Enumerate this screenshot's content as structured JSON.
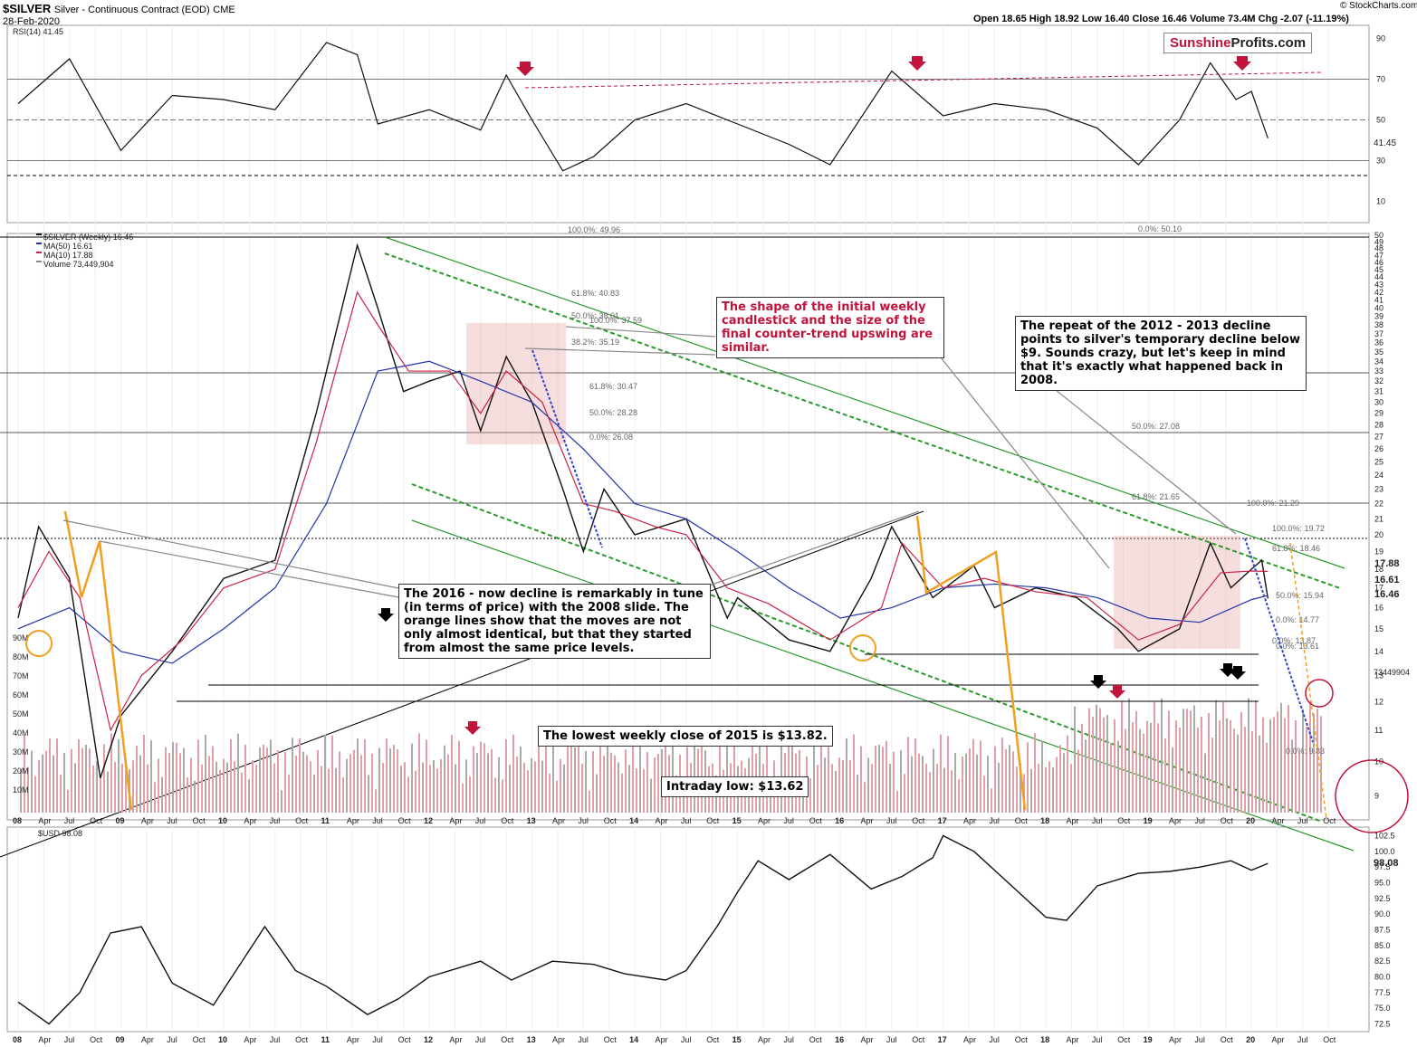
{
  "header": {
    "symbol": "$SILVER",
    "name": "Silver - Continuous Contract (EOD)",
    "exchange": "CME",
    "date": "28-Feb-2020",
    "ohlc": "Open 18.65  High 18.92  Low 16.40  Close 16.46  Volume 73.4M  Chg -2.07 (-11.19%)",
    "copyright": "© StockCharts.com"
  },
  "logo": {
    "part1": "Sunshine",
    "part2": "Profits.com"
  },
  "annotations": {
    "shape_note": "The shape of the initial weekly candlestick and the size of the final counter-trend upswing are similar.",
    "repeat_note": "The repeat of the 2012 - 2013 decline points to silver's temporary decline below $9. Sounds crazy, but let's keep in mind that it's exactly what happened back in 2008.",
    "decline_note": "The 2016 - now decline is remarkably in tune (in terms of price) with the 2008 slide. The orange lines show that the moves are not only almost identical, but that they started from almost the same price levels.",
    "lowest_close_note": "The lowest weekly close of 2015 is $13.82.",
    "intraday_note": "Intraday low: $13.62"
  },
  "chart_data": [
    {
      "type": "line",
      "panel": "rsi",
      "title": "RSI(14) 41.45",
      "y_ticks": [
        "90",
        "70",
        "50",
        "30",
        "10"
      ],
      "ylim": [
        0,
        100
      ],
      "last_value_label": "41.45",
      "x": [
        2008.0,
        2008.5,
        2009.0,
        2009.5,
        2010.0,
        2010.5,
        2011.0,
        2011.3,
        2011.5,
        2012.0,
        2012.5,
        2012.75,
        2013.0,
        2013.3,
        2013.6,
        2014.0,
        2014.5,
        2015.0,
        2015.5,
        2015.9,
        2016.5,
        2017.0,
        2017.5,
        2018.0,
        2018.5,
        2018.9,
        2019.3,
        2019.6,
        2019.85,
        2020.0,
        2020.16
      ],
      "values": [
        58,
        80,
        35,
        62,
        60,
        55,
        88,
        82,
        48,
        55,
        45,
        72,
        50,
        25,
        32,
        50,
        58,
        48,
        38,
        28,
        74,
        52,
        58,
        55,
        46,
        28,
        50,
        78,
        60,
        64,
        41
      ]
    },
    {
      "type": "line",
      "panel": "price",
      "title": "$SILVER (Weekly) 16.46",
      "legend": [
        "$SILVER (Weekly) 16.46",
        "MA(50) 16.61",
        "MA(10) 17.88",
        "Volume 73,449,904"
      ],
      "y_ticks": [
        "50",
        "49",
        "48",
        "47",
        "46",
        "45",
        "44",
        "43",
        "42",
        "41",
        "40",
        "39",
        "38",
        "37",
        "36",
        "35",
        "34",
        "33",
        "32",
        "31",
        "30",
        "29",
        "28",
        "27",
        "26",
        "25",
        "24",
        "23",
        "22",
        "21",
        "20",
        "19",
        "18",
        "17",
        "16",
        "15",
        "14",
        "13",
        "12",
        "11",
        "10",
        "9"
      ],
      "x_ticks": [
        "08",
        "Apr",
        "Jul",
        "Oct",
        "09",
        "Apr",
        "Jul",
        "Oct",
        "10",
        "Apr",
        "Jul",
        "Oct",
        "11",
        "Apr",
        "Jul",
        "Oct",
        "12",
        "Apr",
        "Jul",
        "Oct",
        "13",
        "Apr",
        "Jul",
        "Oct",
        "14",
        "Apr",
        "Jul",
        "Oct",
        "15",
        "Apr",
        "Jul",
        "Oct",
        "16",
        "Apr",
        "Jul",
        "Oct",
        "17",
        "Apr",
        "Jul",
        "Oct",
        "18",
        "Apr",
        "Jul",
        "Oct",
        "19",
        "Apr",
        "Jul",
        "Oct",
        "20",
        "Apr",
        "Jul",
        "Oct"
      ],
      "series": [
        {
          "name": "$SILVER (Weekly) 16.46",
          "x": [
            2008.0,
            2008.2,
            2008.5,
            2008.8,
            2009.0,
            2009.5,
            2010.0,
            2010.5,
            2010.9,
            2011.3,
            2011.5,
            2011.75,
            2012.0,
            2012.3,
            2012.5,
            2012.75,
            2013.0,
            2013.3,
            2013.5,
            2013.7,
            2014.0,
            2014.5,
            2014.9,
            2015.0,
            2015.5,
            2015.9,
            2016.3,
            2016.5,
            2016.9,
            2017.3,
            2017.5,
            2017.9,
            2018.3,
            2018.7,
            2018.9,
            2019.3,
            2019.6,
            2019.8,
            2020.0,
            2020.1,
            2020.16
          ],
          "values": [
            15.5,
            20.5,
            17.5,
            9.5,
            11.5,
            14.0,
            17.5,
            18.5,
            29.0,
            48.5,
            40.0,
            31.0,
            32.0,
            33.0,
            27.5,
            34.5,
            30.0,
            23.0,
            19.0,
            23.0,
            20.0,
            21.0,
            15.5,
            16.5,
            14.5,
            14.0,
            17.5,
            20.5,
            16.5,
            18.2,
            16.0,
            17.0,
            16.5,
            15.0,
            14.0,
            15.0,
            19.5,
            17.0,
            18.0,
            18.5,
            16.46
          ]
        },
        {
          "name": "MA(50) 16.61",
          "x": [
            2008.0,
            2008.5,
            2009.0,
            2009.5,
            2010.0,
            2010.5,
            2011.0,
            2011.5,
            2012.0,
            2012.5,
            2013.0,
            2013.5,
            2014.0,
            2014.5,
            2015.0,
            2015.5,
            2016.0,
            2016.5,
            2017.0,
            2017.5,
            2018.0,
            2018.5,
            2019.0,
            2019.5,
            2020.0,
            2020.16
          ],
          "values": [
            15.0,
            16.0,
            14.0,
            13.5,
            15.0,
            17.0,
            22.0,
            33.0,
            34.0,
            32.0,
            30.0,
            26.0,
            22.0,
            21.0,
            19.0,
            17.0,
            15.5,
            16.0,
            17.0,
            17.2,
            17.0,
            16.5,
            15.5,
            15.3,
            16.4,
            16.61
          ]
        },
        {
          "name": "MA(10) 17.88",
          "x": [
            2008.0,
            2008.3,
            2008.6,
            2008.9,
            2009.2,
            2009.6,
            2010.0,
            2010.5,
            2010.9,
            2011.3,
            2011.5,
            2011.8,
            2012.2,
            2012.5,
            2012.75,
            2013.1,
            2013.5,
            2013.8,
            2014.2,
            2014.5,
            2014.9,
            2015.3,
            2015.9,
            2016.4,
            2016.6,
            2017.0,
            2017.4,
            2017.9,
            2018.4,
            2018.9,
            2019.3,
            2019.7,
            2020.0,
            2020.16
          ],
          "values": [
            16.0,
            19.0,
            16.5,
            11.0,
            13.0,
            14.5,
            17.0,
            18.0,
            26.5,
            42.0,
            38.0,
            33.0,
            33.0,
            29.0,
            33.0,
            30.0,
            22.0,
            21.5,
            20.5,
            20.0,
            17.0,
            16.2,
            14.5,
            16.0,
            19.5,
            17.0,
            17.5,
            16.8,
            16.5,
            14.5,
            15.2,
            17.8,
            17.9,
            17.88
          ]
        }
      ],
      "fib_labels": [
        "100.0%: 49.96",
        "61.8%: 40.83",
        "50.0%: 38.01",
        "100.0%: 37.59",
        "38.2%: 35.19",
        "61.8%: 30.47",
        "50.0%: 28.28",
        "0.0%: 26.08",
        "0.0%: 50.10",
        "50.0%: 27.08",
        "61.8%: 21.65",
        "100.0%: 21.29",
        "100.0%: 19.72",
        "61.8%: 18.46",
        "0.0%: 13.87",
        "0.0%: 9.83",
        "50.0%: 15.94",
        "0.0%: 14.77",
        "0.0%: 13.61"
      ],
      "last_value_labels": [
        "17.88",
        "16.61",
        "16.46"
      ]
    },
    {
      "type": "bar",
      "panel": "volume",
      "y_ticks": [
        "90M",
        "80M",
        "70M",
        "60M",
        "50M",
        "40M",
        "30M",
        "20M",
        "10M"
      ],
      "last_value_label": "73449904"
    },
    {
      "type": "line",
      "panel": "usd",
      "title": "$USD 98.08",
      "y_ticks": [
        "102.5",
        "100.0",
        "97.5",
        "95.0",
        "92.5",
        "90.0",
        "87.5",
        "85.0",
        "82.5",
        "80.0",
        "77.5",
        "75.0",
        "72.5"
      ],
      "ylim": [
        72,
        103
      ],
      "last_value_label": "98.08",
      "x": [
        2008.0,
        2008.3,
        2008.6,
        2008.9,
        2009.2,
        2009.5,
        2009.9,
        2010.4,
        2010.7,
        2011.0,
        2011.4,
        2011.7,
        2012.0,
        2012.5,
        2012.8,
        2013.2,
        2013.6,
        2013.9,
        2014.3,
        2014.5,
        2014.8,
        2015.0,
        2015.2,
        2015.5,
        2015.9,
        2016.3,
        2016.6,
        2016.9,
        2017.0,
        2017.3,
        2017.7,
        2018.0,
        2018.2,
        2018.5,
        2018.9,
        2019.2,
        2019.5,
        2019.8,
        2020.0,
        2020.16
      ],
      "values": [
        76.0,
        72.5,
        77.5,
        87.0,
        88.0,
        79.0,
        75.5,
        88.0,
        81.0,
        78.5,
        74.0,
        76.5,
        80.0,
        82.5,
        79.5,
        82.5,
        82.0,
        80.5,
        79.5,
        81.0,
        88.0,
        93.5,
        98.5,
        95.5,
        99.5,
        94.0,
        96.0,
        99.0,
        102.5,
        100.0,
        94.0,
        89.5,
        89.0,
        94.5,
        96.5,
        96.8,
        97.5,
        98.5,
        97.0,
        98.08
      ]
    }
  ]
}
